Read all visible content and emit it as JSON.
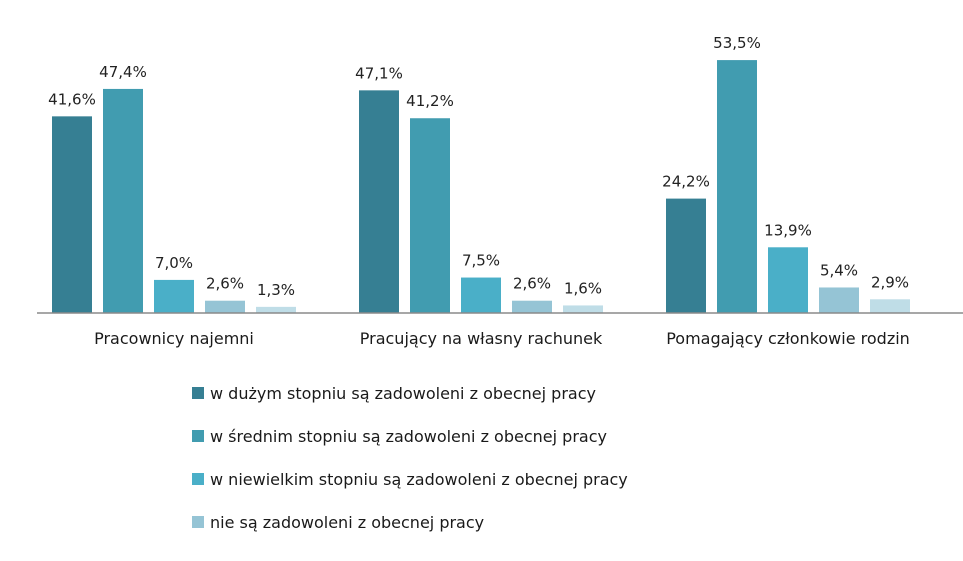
{
  "chart_data": {
    "type": "bar",
    "categories": [
      "Pracownicy najemni",
      "Pracujący na własny rachunek",
      "Pomagający członkowie rodzin"
    ],
    "series": [
      {
        "name": "w dużym stopniu są zadowoleni z obecnej pracy",
        "values": [
          41.6,
          47.1,
          24.2
        ],
        "labels": [
          "41,6%",
          "47,1%",
          "24,2%"
        ],
        "color": "#367f93"
      },
      {
        "name": "w średnim stopniu są zadowoleni z obecnej pracy",
        "values": [
          47.4,
          41.2,
          53.5
        ],
        "labels": [
          "47,4%",
          "41,2%",
          "53,5%"
        ],
        "color": "#419cb0"
      },
      {
        "name": "w niewielkim stopniu są zadowoleni z obecnej pracy",
        "values": [
          7.0,
          7.5,
          13.9
        ],
        "labels": [
          "7,0%",
          "7,5%",
          "13,9%"
        ],
        "color": "#4aafc8"
      },
      {
        "name": "nie są zadowoleni z obecnej pracy",
        "values": [
          2.6,
          2.6,
          5.4
        ],
        "labels": [
          "2,6%",
          "2,6%",
          "5,4%"
        ],
        "color": "#95c4d5"
      },
      {
        "name": "",
        "values": [
          1.3,
          1.6,
          2.9
        ],
        "labels": [
          "1,3%",
          "1,6%",
          "2,9%"
        ],
        "color": "#bfdde7"
      }
    ],
    "ylim": [
      0,
      55
    ],
    "title": "",
    "xlabel": "",
    "ylabel": "",
    "grid": false,
    "legend_position": "bottom"
  }
}
